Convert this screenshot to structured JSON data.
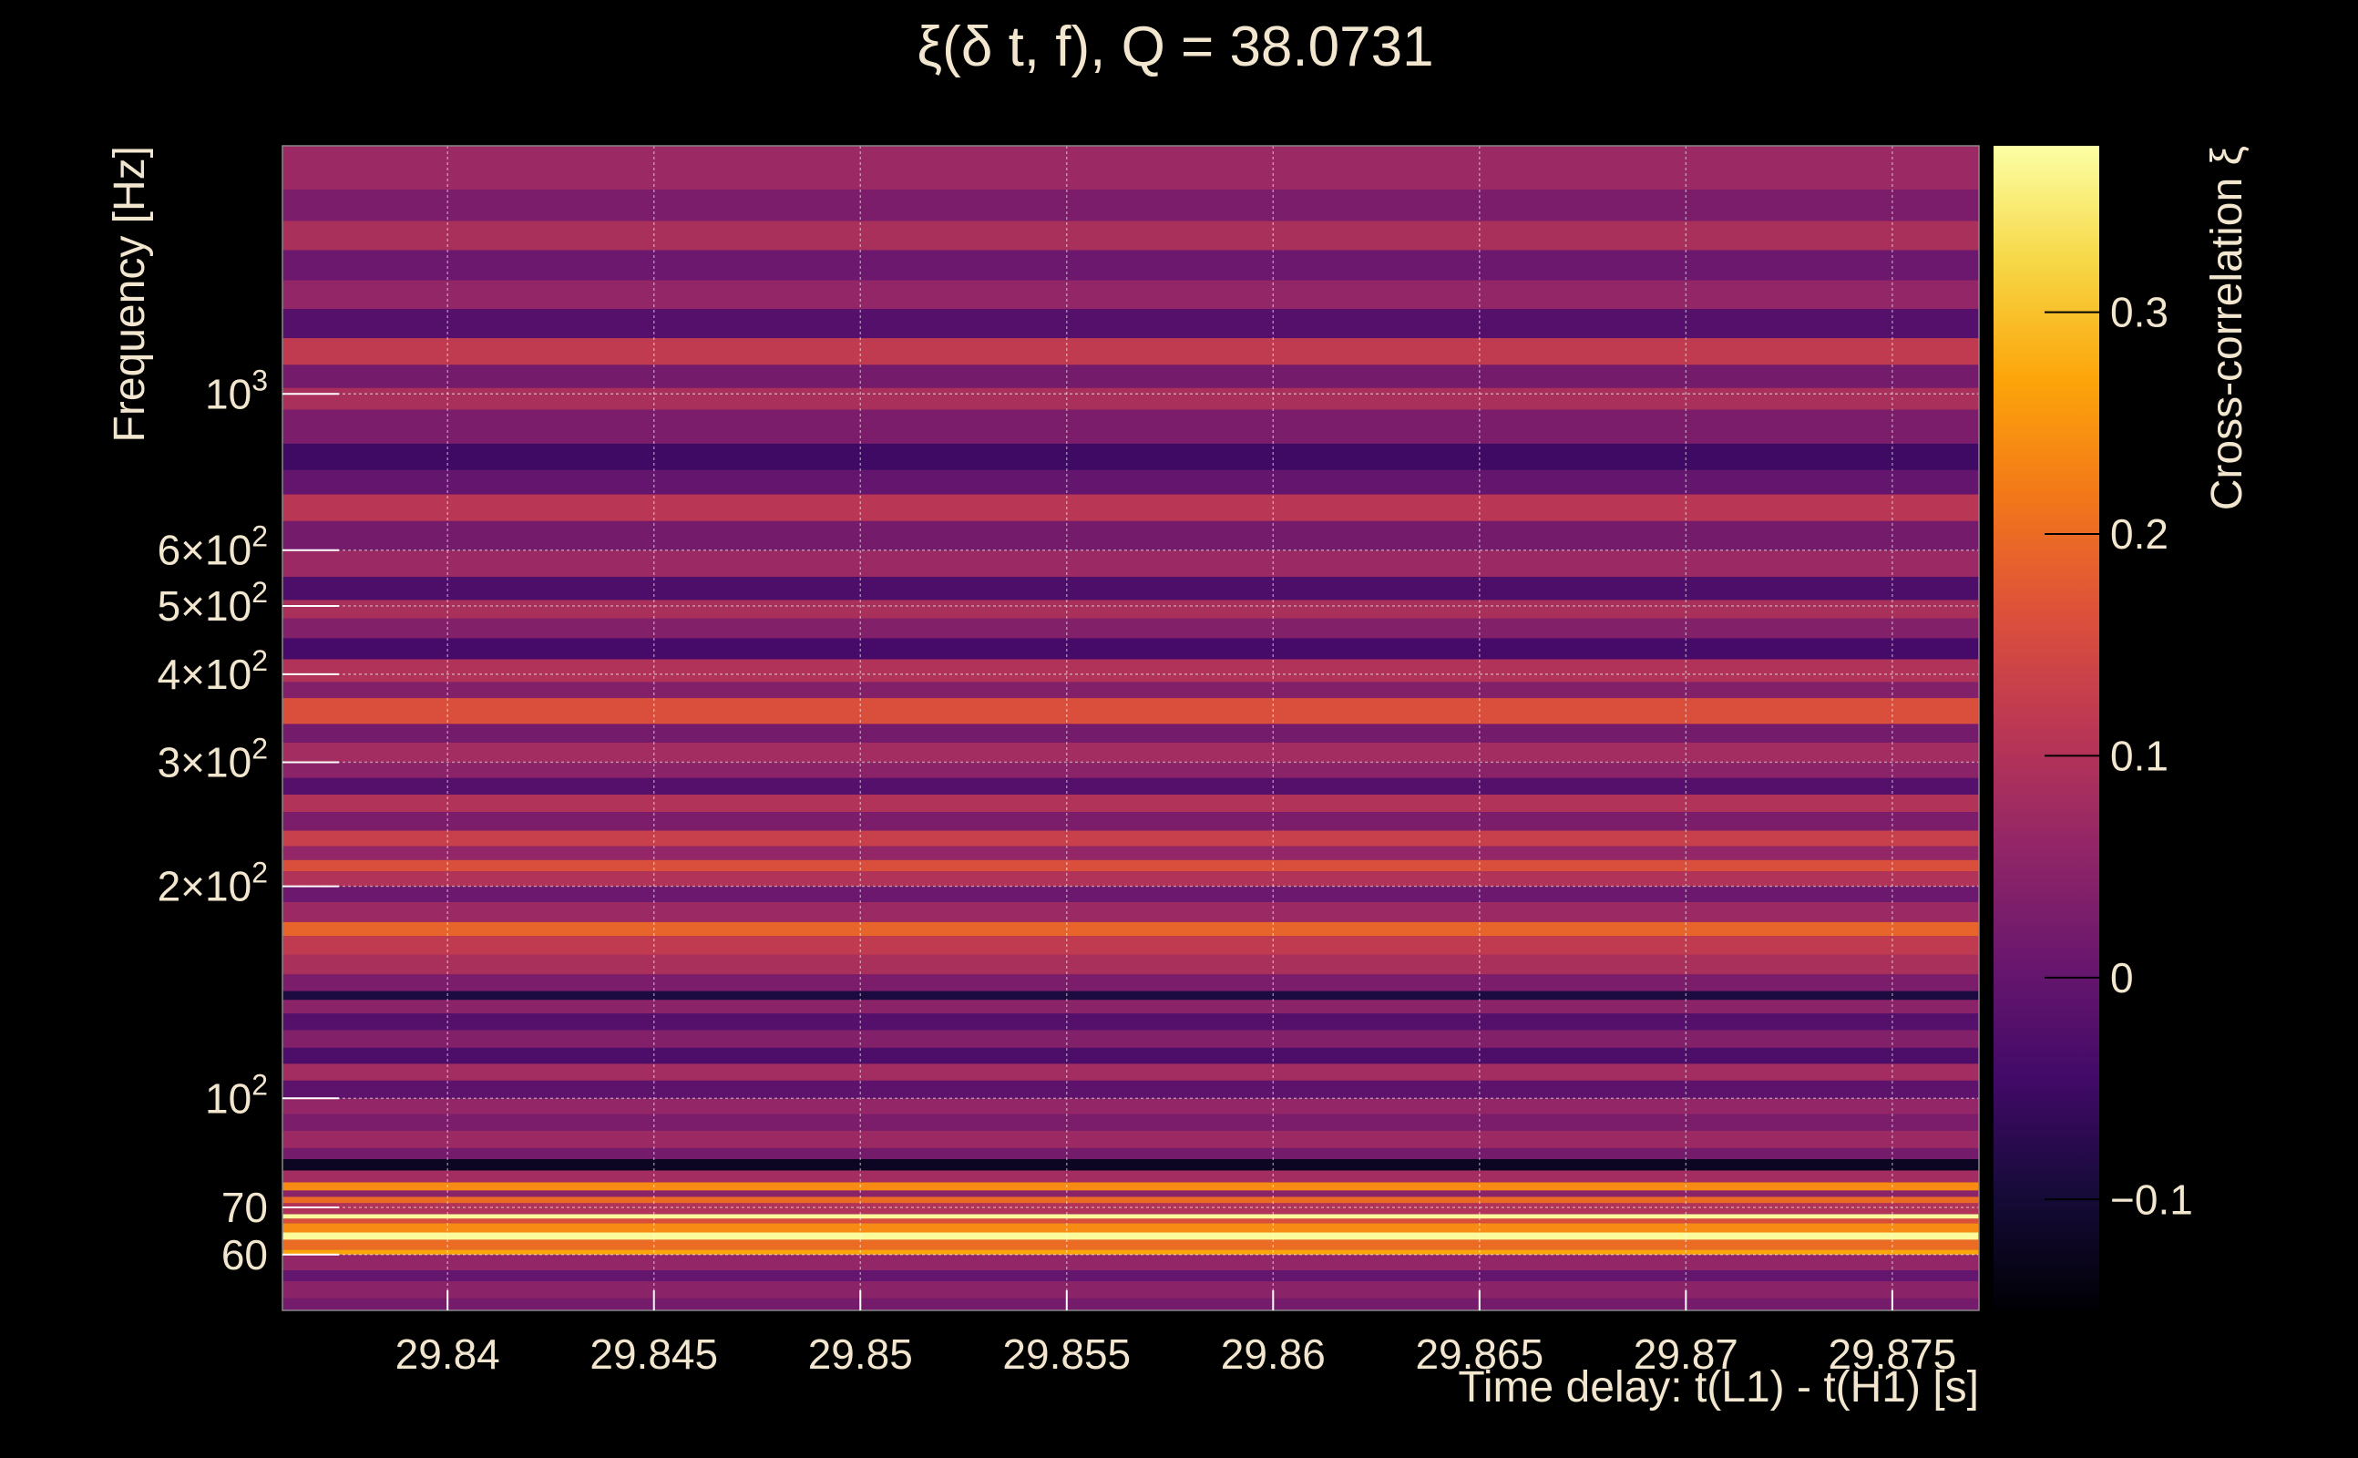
{
  "chart_data": {
    "type": "heatmap",
    "title": "ξ(δ t, f), Q = 38.0731",
    "xlabel": "Time delay: t(L1) - t(H1) [s]",
    "ylabel": "Frequency [Hz]",
    "colorbar_label": "Cross-correlation ξ",
    "x_range": [
      29.836,
      29.8771
    ],
    "y_range_hz": [
      50,
      2250
    ],
    "y_scale": "log",
    "z_range": [
      -0.15,
      0.375
    ],
    "grid": true,
    "colormap": "inferno",
    "x_ticks": [
      {
        "value": 29.84,
        "label": "29.84"
      },
      {
        "value": 29.845,
        "label": "29.845"
      },
      {
        "value": 29.85,
        "label": "29.85"
      },
      {
        "value": 29.855,
        "label": "29.855"
      },
      {
        "value": 29.86,
        "label": "29.86"
      },
      {
        "value": 29.865,
        "label": "29.865"
      },
      {
        "value": 29.87,
        "label": "29.87"
      },
      {
        "value": 29.875,
        "label": "29.875"
      }
    ],
    "y_ticks": [
      {
        "value": 60,
        "base": "60",
        "exp": ""
      },
      {
        "value": 70,
        "base": "70",
        "exp": ""
      },
      {
        "value": 100,
        "base": "10",
        "exp": "2"
      },
      {
        "value": 200,
        "base": "2×10",
        "exp": "2"
      },
      {
        "value": 300,
        "base": "3×10",
        "exp": "2"
      },
      {
        "value": 400,
        "base": "4×10",
        "exp": "2"
      },
      {
        "value": 500,
        "base": "5×10",
        "exp": "2"
      },
      {
        "value": 600,
        "base": "6×10",
        "exp": "2"
      },
      {
        "value": 1000,
        "base": "10",
        "exp": "3"
      }
    ],
    "colorbar_ticks": [
      {
        "value": 0.3,
        "label": "0.3"
      },
      {
        "value": 0.2,
        "label": "0.2"
      },
      {
        "value": 0.1,
        "label": "0.1"
      },
      {
        "value": 0,
        "label": "0"
      },
      {
        "value": -0.1,
        "label": "−0.1"
      }
    ],
    "frequency_bands": [
      {
        "f_low": 50,
        "f_high": 52,
        "xi": 0.02
      },
      {
        "f_low": 52,
        "f_high": 55,
        "xi": 0.05
      },
      {
        "f_low": 55,
        "f_high": 57,
        "xi": 0.0
      },
      {
        "f_low": 57,
        "f_high": 60,
        "xi": 0.06
      },
      {
        "f_low": 60,
        "f_high": 61,
        "xi": 0.27
      },
      {
        "f_low": 61,
        "f_high": 63,
        "xi": 0.2
      },
      {
        "f_low": 63,
        "f_high": 64.5,
        "xi": 0.37
      },
      {
        "f_low": 64.5,
        "f_high": 66.5,
        "xi": 0.24
      },
      {
        "f_low": 66.5,
        "f_high": 67.5,
        "xi": 0.16
      },
      {
        "f_low": 67.5,
        "f_high": 68.5,
        "xi": 0.37
      },
      {
        "f_low": 68.5,
        "f_high": 71,
        "xi": 0.1
      },
      {
        "f_low": 71,
        "f_high": 72.5,
        "xi": 0.2
      },
      {
        "f_low": 72.5,
        "f_high": 74,
        "xi": 0.05
      },
      {
        "f_low": 74,
        "f_high": 76,
        "xi": 0.24
      },
      {
        "f_low": 76,
        "f_high": 79,
        "xi": 0.08
      },
      {
        "f_low": 79,
        "f_high": 82,
        "xi": -0.12
      },
      {
        "f_low": 82,
        "f_high": 85,
        "xi": 0.02
      },
      {
        "f_low": 85,
        "f_high": 90,
        "xi": 0.07
      },
      {
        "f_low": 90,
        "f_high": 95,
        "xi": 0.03
      },
      {
        "f_low": 95,
        "f_high": 100,
        "xi": 0.06
      },
      {
        "f_low": 100,
        "f_high": 106,
        "xi": -0.01
      },
      {
        "f_low": 106,
        "f_high": 112,
        "xi": 0.08
      },
      {
        "f_low": 112,
        "f_high": 118,
        "xi": -0.03
      },
      {
        "f_low": 118,
        "f_high": 125,
        "xi": 0.04
      },
      {
        "f_low": 125,
        "f_high": 132,
        "xi": -0.02
      },
      {
        "f_low": 132,
        "f_high": 138,
        "xi": 0.05
      },
      {
        "f_low": 138,
        "f_high": 142,
        "xi": -0.09
      },
      {
        "f_low": 142,
        "f_high": 150,
        "xi": 0.03
      },
      {
        "f_low": 150,
        "f_high": 160,
        "xi": 0.09
      },
      {
        "f_low": 160,
        "f_high": 170,
        "xi": 0.12
      },
      {
        "f_low": 170,
        "f_high": 178,
        "xi": 0.19
      },
      {
        "f_low": 178,
        "f_high": 190,
        "xi": 0.07
      },
      {
        "f_low": 190,
        "f_high": 200,
        "xi": 0.01
      },
      {
        "f_low": 200,
        "f_high": 210,
        "xi": 0.1
      },
      {
        "f_low": 210,
        "f_high": 218,
        "xi": 0.16
      },
      {
        "f_low": 218,
        "f_high": 228,
        "xi": 0.06
      },
      {
        "f_low": 228,
        "f_high": 240,
        "xi": 0.13
      },
      {
        "f_low": 240,
        "f_high": 255,
        "xi": 0.03
      },
      {
        "f_low": 255,
        "f_high": 270,
        "xi": 0.1
      },
      {
        "f_low": 270,
        "f_high": 285,
        "xi": -0.02
      },
      {
        "f_low": 285,
        "f_high": 300,
        "xi": 0.05
      },
      {
        "f_low": 300,
        "f_high": 320,
        "xi": 0.08
      },
      {
        "f_low": 320,
        "f_high": 340,
        "xi": 0.02
      },
      {
        "f_low": 340,
        "f_high": 370,
        "xi": 0.16
      },
      {
        "f_low": 370,
        "f_high": 390,
        "xi": 0.04
      },
      {
        "f_low": 390,
        "f_high": 420,
        "xi": 0.1
      },
      {
        "f_low": 420,
        "f_high": 450,
        "xi": -0.04
      },
      {
        "f_low": 450,
        "f_high": 480,
        "xi": 0.04
      },
      {
        "f_low": 480,
        "f_high": 510,
        "xi": 0.09
      },
      {
        "f_low": 510,
        "f_high": 550,
        "xi": -0.03
      },
      {
        "f_low": 550,
        "f_high": 600,
        "xi": 0.07
      },
      {
        "f_low": 600,
        "f_high": 660,
        "xi": 0.02
      },
      {
        "f_low": 660,
        "f_high": 720,
        "xi": 0.11
      },
      {
        "f_low": 720,
        "f_high": 780,
        "xi": 0.0
      },
      {
        "f_low": 780,
        "f_high": 850,
        "xi": -0.05
      },
      {
        "f_low": 850,
        "f_high": 950,
        "xi": 0.03
      },
      {
        "f_low": 950,
        "f_high": 1020,
        "xi": 0.09
      },
      {
        "f_low": 1020,
        "f_high": 1100,
        "xi": 0.02
      },
      {
        "f_low": 1100,
        "f_high": 1200,
        "xi": 0.12
      },
      {
        "f_low": 1200,
        "f_high": 1320,
        "xi": -0.02
      },
      {
        "f_low": 1320,
        "f_high": 1450,
        "xi": 0.06
      },
      {
        "f_low": 1450,
        "f_high": 1600,
        "xi": 0.01
      },
      {
        "f_low": 1600,
        "f_high": 1760,
        "xi": 0.09
      },
      {
        "f_low": 1760,
        "f_high": 1950,
        "xi": 0.03
      },
      {
        "f_low": 1950,
        "f_high": 2250,
        "xi": 0.07
      }
    ]
  }
}
